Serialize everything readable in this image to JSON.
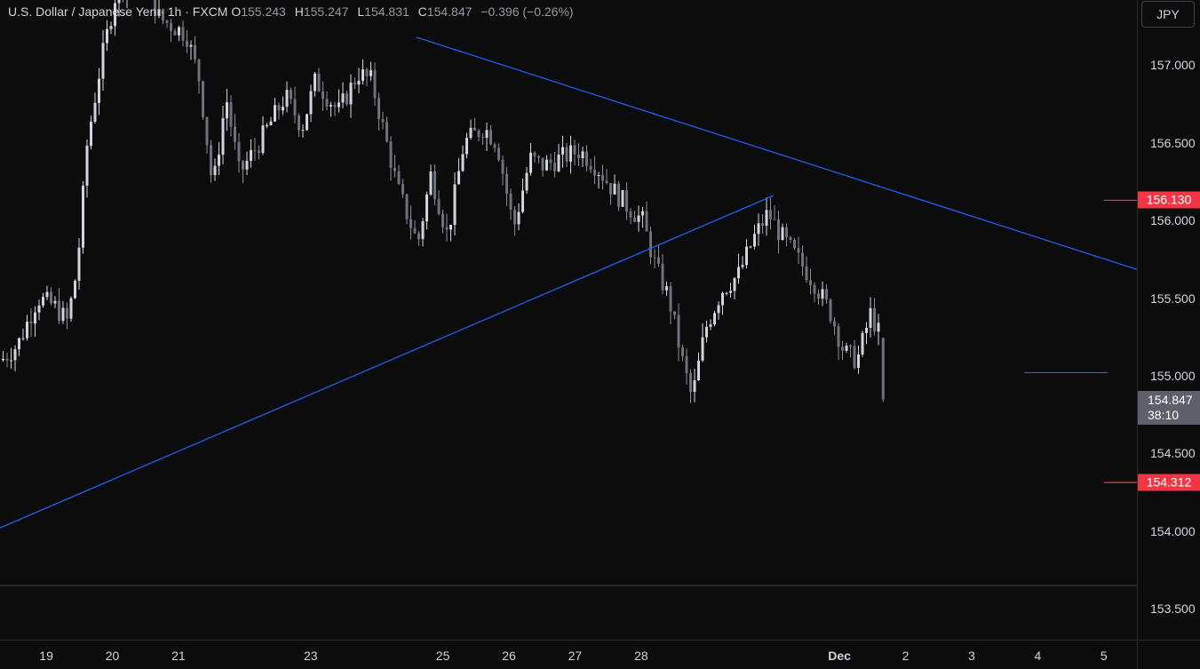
{
  "legend": {
    "symbol": "U.S. Dollar / Japanese Yen · 1h · FXCM",
    "open_label": "O",
    "open": "155.243",
    "high_label": "H",
    "high": "155.247",
    "low_label": "L",
    "low": "154.831",
    "close_label": "C",
    "close": "154.847",
    "change": "−0.396 (−0.26%)"
  },
  "currency": "JPY",
  "price_axis": {
    "ticks": [
      "157.000",
      "156.500",
      "156.000",
      "155.500",
      "155.000",
      "154.500",
      "154.000",
      "153.500"
    ]
  },
  "time_axis": {
    "ticks": [
      {
        "label": "19",
        "bold": false
      },
      {
        "label": "20",
        "bold": false
      },
      {
        "label": "21",
        "bold": false
      },
      {
        "label": "23",
        "bold": false
      },
      {
        "label": "25",
        "bold": false
      },
      {
        "label": "26",
        "bold": false
      },
      {
        "label": "27",
        "bold": false
      },
      {
        "label": "28",
        "bold": false
      },
      {
        "label": "Dec",
        "bold": true
      },
      {
        "label": "2",
        "bold": false
      },
      {
        "label": "3",
        "bold": false
      },
      {
        "label": "4",
        "bold": false
      },
      {
        "label": "5",
        "bold": false
      }
    ]
  },
  "price_tags": {
    "resistance": "156.130",
    "current_price": "154.847",
    "countdown": "38:10",
    "support": "154.312"
  },
  "colors": {
    "background": "#0c0c0d",
    "candle": "#d1d4dc",
    "trendline": "#2962ff",
    "level": "#f23645",
    "current_tag": "#5d606b"
  },
  "chart_data": {
    "type": "candlestick",
    "symbol": "USDJPY",
    "interval": "1h",
    "ylim": [
      153.3,
      157.42
    ],
    "x_range_days": [
      18.3,
      35.5
    ],
    "x_ticks_days": [
      19,
      20,
      21,
      23,
      25,
      26,
      27,
      28,
      31,
      32,
      33,
      34,
      35
    ],
    "close_path": [
      [
        18.3,
        155.1
      ],
      [
        18.55,
        155.2
      ],
      [
        18.85,
        155.5
      ],
      [
        19.1,
        155.45
      ],
      [
        19.3,
        155.35
      ],
      [
        19.45,
        155.7
      ],
      [
        19.6,
        156.5
      ],
      [
        19.8,
        157.0
      ],
      [
        20.05,
        157.5
      ],
      [
        20.4,
        157.6
      ],
      [
        20.7,
        157.3
      ],
      [
        21.1,
        157.2
      ],
      [
        21.3,
        156.9
      ],
      [
        21.5,
        156.2
      ],
      [
        21.7,
        156.8
      ],
      [
        21.9,
        156.3
      ],
      [
        22.2,
        156.5
      ],
      [
        22.6,
        156.8
      ],
      [
        22.85,
        156.6
      ],
      [
        23.05,
        156.9
      ],
      [
        23.4,
        156.7
      ],
      [
        23.7,
        156.95
      ],
      [
        23.9,
        156.9
      ],
      [
        24.1,
        156.55
      ],
      [
        24.3,
        156.2
      ],
      [
        24.6,
        155.85
      ],
      [
        24.8,
        156.3
      ],
      [
        25.05,
        155.9
      ],
      [
        25.3,
        156.5
      ],
      [
        25.6,
        156.6
      ],
      [
        25.8,
        156.5
      ],
      [
        26.05,
        155.95
      ],
      [
        26.3,
        156.4
      ],
      [
        26.5,
        156.35
      ],
      [
        26.75,
        156.4
      ],
      [
        27.05,
        156.45
      ],
      [
        27.3,
        156.35
      ],
      [
        27.55,
        156.2
      ],
      [
        27.75,
        156.1
      ],
      [
        28.0,
        156.0
      ],
      [
        28.2,
        155.7
      ],
      [
        28.4,
        155.5
      ],
      [
        28.6,
        155.1
      ],
      [
        28.75,
        154.85
      ],
      [
        28.95,
        155.3
      ],
      [
        29.2,
        155.55
      ],
      [
        29.45,
        155.65
      ],
      [
        29.7,
        155.9
      ],
      [
        29.9,
        156.05
      ],
      [
        30.1,
        155.9
      ],
      [
        30.35,
        155.75
      ],
      [
        30.6,
        155.6
      ],
      [
        30.85,
        155.4
      ],
      [
        31.05,
        155.15
      ],
      [
        31.25,
        155.1
      ],
      [
        31.45,
        155.4
      ],
      [
        31.6,
        155.25
      ]
    ],
    "last_candle": {
      "open": 155.243,
      "high": 155.247,
      "low": 154.831,
      "close": 154.847
    },
    "lines": {
      "upper_trendline": {
        "from": [
          24.6,
          157.18
        ],
        "to": [
          35.9,
          155.63
        ]
      },
      "lower_trendline": {
        "from": [
          18.3,
          154.02
        ],
        "to": [
          30.0,
          156.16
        ]
      },
      "support_line": {
        "from": [
          33.8,
          155.02
        ],
        "to": [
          35.05,
          155.02
        ]
      },
      "resistance_level": {
        "from": [
          35.0,
          156.13
        ],
        "to": [
          35.5,
          156.13
        ]
      },
      "support_level": {
        "from": [
          35.0,
          154.312
        ],
        "to": [
          35.5,
          154.312
        ]
      }
    }
  }
}
